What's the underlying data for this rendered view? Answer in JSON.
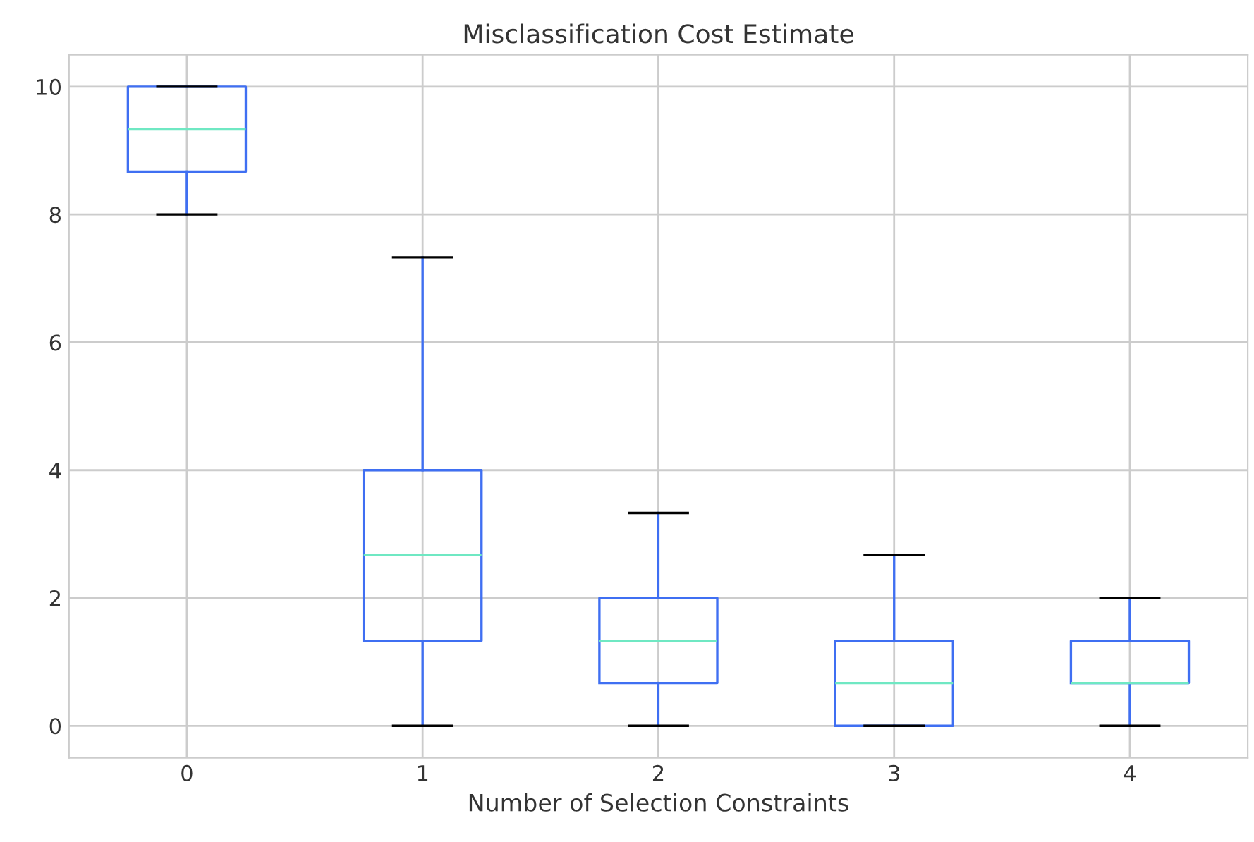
{
  "chart_data": {
    "type": "box",
    "title": "Misclassification Cost Estimate",
    "xlabel": "Number of Selection Constraints",
    "categories": [
      "0",
      "1",
      "2",
      "3",
      "4"
    ],
    "series": [
      {
        "color": "#3f6ff2",
        "boxes": [
          {
            "low": 8,
            "q1": 8.67,
            "median": 9.33,
            "q3": 10,
            "high": 10
          },
          {
            "low": 0,
            "q1": 1.33,
            "median": 2.67,
            "q3": 4,
            "high": 7.33
          },
          {
            "low": 0,
            "q1": 0.67,
            "median": 1.33,
            "q3": 2,
            "high": 3.33
          },
          {
            "low": 0,
            "q1": 0,
            "median": 0.67,
            "q3": 1.33,
            "high": 2.67
          },
          {
            "low": 0,
            "q1": 0.67,
            "median": 0.67,
            "q3": 1.33,
            "high": 2
          }
        ]
      }
    ],
    "ylim": [
      -0.5,
      10.5
    ],
    "yticks": [
      0,
      2,
      4,
      6,
      8,
      10
    ],
    "grid": true
  }
}
